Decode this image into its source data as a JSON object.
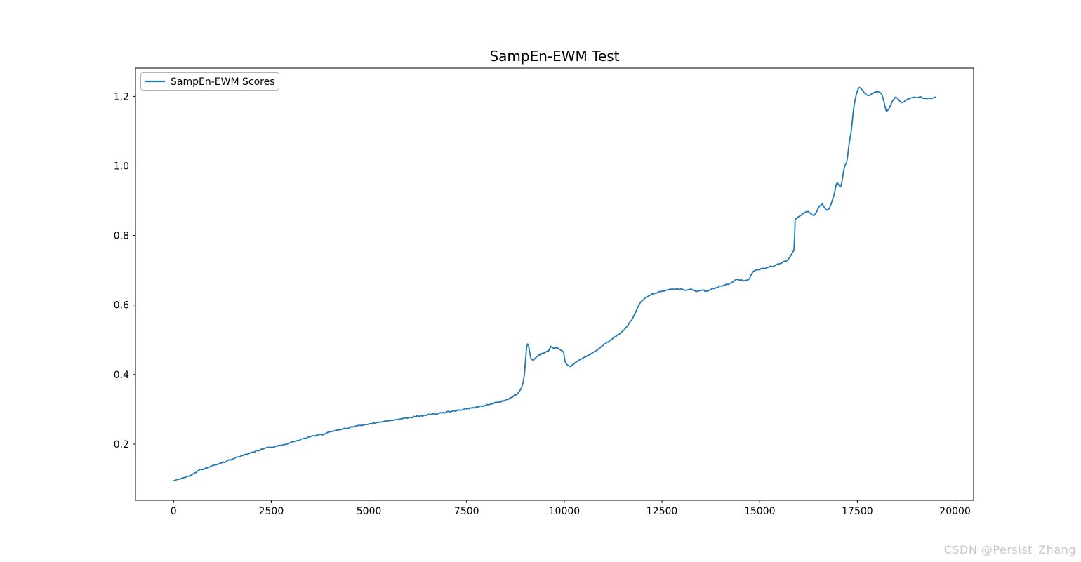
{
  "chart_data": {
    "type": "line",
    "title": "SampEn-EWM Test",
    "xlabel": "",
    "ylabel": "",
    "grid": false,
    "legend_position": "upper left",
    "line_color": "#1f77b4",
    "axis_color": "#000000",
    "xlim": [
      -975,
      20475
    ],
    "ylim": [
      0.0385,
      1.2815
    ],
    "x_ticks": [
      0,
      2500,
      5000,
      7500,
      10000,
      12500,
      15000,
      17500,
      20000
    ],
    "y_ticks": [
      0.2,
      0.4,
      0.6,
      0.8,
      1.0,
      1.2
    ],
    "series": [
      {
        "name": "SampEn-EWM Scores",
        "points": [
          [
            0,
            0.095
          ],
          [
            150,
            0.099
          ],
          [
            300,
            0.104
          ],
          [
            450,
            0.111
          ],
          [
            646,
            0.124
          ],
          [
            800,
            0.13
          ],
          [
            1000,
            0.138
          ],
          [
            1200,
            0.146
          ],
          [
            1364,
            0.151
          ],
          [
            1550,
            0.159
          ],
          [
            1750,
            0.167
          ],
          [
            1950,
            0.174
          ],
          [
            2143,
            0.181
          ],
          [
            2300,
            0.186
          ],
          [
            2441,
            0.191
          ],
          [
            2600,
            0.193
          ],
          [
            2750,
            0.197
          ],
          [
            2890,
            0.2
          ],
          [
            3100,
            0.208
          ],
          [
            3300,
            0.215
          ],
          [
            3500,
            0.221
          ],
          [
            3698,
            0.225
          ],
          [
            3900,
            0.231
          ],
          [
            4100,
            0.238
          ],
          [
            4250,
            0.242
          ],
          [
            4416,
            0.245
          ],
          [
            4600,
            0.25
          ],
          [
            4800,
            0.254
          ],
          [
            5000,
            0.258
          ],
          [
            5196,
            0.262
          ],
          [
            5400,
            0.266
          ],
          [
            5600,
            0.269
          ],
          [
            5800,
            0.272
          ],
          [
            5960,
            0.275
          ],
          [
            6200,
            0.279
          ],
          [
            6400,
            0.282
          ],
          [
            6600,
            0.285
          ],
          [
            6870,
            0.289
          ],
          [
            7100,
            0.294
          ],
          [
            7300,
            0.298
          ],
          [
            7500,
            0.301
          ],
          [
            7768,
            0.306
          ],
          [
            7950,
            0.311
          ],
          [
            8150,
            0.316
          ],
          [
            8350,
            0.322
          ],
          [
            8486,
            0.326
          ],
          [
            8600,
            0.332
          ],
          [
            8700,
            0.338
          ],
          [
            8800,
            0.345
          ],
          [
            8845,
            0.35
          ],
          [
            8905,
            0.362
          ],
          [
            8948,
            0.378
          ],
          [
            8980,
            0.4
          ],
          [
            9010,
            0.445
          ],
          [
            9035,
            0.478
          ],
          [
            9060,
            0.488
          ],
          [
            9084,
            0.486
          ],
          [
            9110,
            0.465
          ],
          [
            9147,
            0.447
          ],
          [
            9207,
            0.441
          ],
          [
            9267,
            0.448
          ],
          [
            9327,
            0.454
          ],
          [
            9447,
            0.461
          ],
          [
            9520,
            0.464
          ],
          [
            9597,
            0.468
          ],
          [
            9656,
            0.481
          ],
          [
            9700,
            0.477
          ],
          [
            9750,
            0.475
          ],
          [
            9800,
            0.478
          ],
          [
            9850,
            0.475
          ],
          [
            9900,
            0.471
          ],
          [
            9950,
            0.468
          ],
          [
            9985,
            0.463
          ],
          [
            10015,
            0.438
          ],
          [
            10075,
            0.428
          ],
          [
            10120,
            0.425
          ],
          [
            10164,
            0.423
          ],
          [
            10240,
            0.43
          ],
          [
            10314,
            0.437
          ],
          [
            10420,
            0.444
          ],
          [
            10553,
            0.451
          ],
          [
            10700,
            0.461
          ],
          [
            10853,
            0.471
          ],
          [
            11000,
            0.484
          ],
          [
            11151,
            0.497
          ],
          [
            11300,
            0.509
          ],
          [
            11451,
            0.521
          ],
          [
            11600,
            0.538
          ],
          [
            11750,
            0.562
          ],
          [
            11830,
            0.58
          ],
          [
            11896,
            0.597
          ],
          [
            11990,
            0.612
          ],
          [
            12076,
            0.621
          ],
          [
            12200,
            0.628
          ],
          [
            12315,
            0.634
          ],
          [
            12450,
            0.639
          ],
          [
            12614,
            0.643
          ],
          [
            12750,
            0.645
          ],
          [
            12914,
            0.646
          ],
          [
            13050,
            0.644
          ],
          [
            13212,
            0.645
          ],
          [
            13300,
            0.642
          ],
          [
            13392,
            0.639
          ],
          [
            13512,
            0.643
          ],
          [
            13632,
            0.64
          ],
          [
            13720,
            0.643
          ],
          [
            13811,
            0.647
          ],
          [
            13950,
            0.652
          ],
          [
            14111,
            0.657
          ],
          [
            14230,
            0.662
          ],
          [
            14330,
            0.668
          ],
          [
            14410,
            0.674
          ],
          [
            14500,
            0.672
          ],
          [
            14590,
            0.669
          ],
          [
            14679,
            0.672
          ],
          [
            14740,
            0.676
          ],
          [
            14800,
            0.69
          ],
          [
            14860,
            0.698
          ],
          [
            14950,
            0.702
          ],
          [
            15100,
            0.706
          ],
          [
            15200,
            0.708
          ],
          [
            15309,
            0.711
          ],
          [
            15400,
            0.714
          ],
          [
            15488,
            0.718
          ],
          [
            15580,
            0.722
          ],
          [
            15668,
            0.726
          ],
          [
            15728,
            0.731
          ],
          [
            15787,
            0.74
          ],
          [
            15847,
            0.752
          ],
          [
            15877,
            0.758
          ],
          [
            15895,
            0.8
          ],
          [
            15907,
            0.845
          ],
          [
            15940,
            0.849
          ],
          [
            15967,
            0.852
          ],
          [
            16010,
            0.855
          ],
          [
            16057,
            0.858
          ],
          [
            16100,
            0.862
          ],
          [
            16147,
            0.866
          ],
          [
            16200,
            0.868
          ],
          [
            16237,
            0.869
          ],
          [
            16296,
            0.864
          ],
          [
            16340,
            0.86
          ],
          [
            16386,
            0.857
          ],
          [
            16430,
            0.863
          ],
          [
            16476,
            0.872
          ],
          [
            16536,
            0.885
          ],
          [
            16596,
            0.892
          ],
          [
            16640,
            0.884
          ],
          [
            16686,
            0.876
          ],
          [
            16745,
            0.872
          ],
          [
            16790,
            0.88
          ],
          [
            16835,
            0.893
          ],
          [
            16895,
            0.912
          ],
          [
            16925,
            0.928
          ],
          [
            16955,
            0.945
          ],
          [
            16985,
            0.952
          ],
          [
            17015,
            0.947
          ],
          [
            17045,
            0.942
          ],
          [
            17074,
            0.94
          ],
          [
            17104,
            0.955
          ],
          [
            17134,
            0.975
          ],
          [
            17164,
            0.995
          ],
          [
            17200,
            1.005
          ],
          [
            17224,
            1.008
          ],
          [
            17254,
            1.03
          ],
          [
            17284,
            1.06
          ],
          [
            17313,
            1.08
          ],
          [
            17343,
            1.1
          ],
          [
            17373,
            1.13
          ],
          [
            17403,
            1.163
          ],
          [
            17433,
            1.185
          ],
          [
            17463,
            1.2
          ],
          [
            17493,
            1.213
          ],
          [
            17523,
            1.222
          ],
          [
            17553,
            1.226
          ],
          [
            17583,
            1.224
          ],
          [
            17613,
            1.22
          ],
          [
            17643,
            1.217
          ],
          [
            17672,
            1.211
          ],
          [
            17702,
            1.208
          ],
          [
            17745,
            1.204
          ],
          [
            17792,
            1.202
          ],
          [
            17852,
            1.206
          ],
          [
            17900,
            1.209
          ],
          [
            17942,
            1.212
          ],
          [
            17990,
            1.213
          ],
          [
            18032,
            1.213
          ],
          [
            18080,
            1.211
          ],
          [
            18121,
            1.207
          ],
          [
            18150,
            1.198
          ],
          [
            18181,
            1.185
          ],
          [
            18210,
            1.17
          ],
          [
            18241,
            1.158
          ],
          [
            18270,
            1.159
          ],
          [
            18301,
            1.163
          ],
          [
            18350,
            1.174
          ],
          [
            18390,
            1.185
          ],
          [
            18440,
            1.193
          ],
          [
            18480,
            1.198
          ],
          [
            18510,
            1.196
          ],
          [
            18540,
            1.193
          ],
          [
            18580,
            1.187
          ],
          [
            18630,
            1.182
          ],
          [
            18689,
            1.184
          ],
          [
            18730,
            1.188
          ],
          [
            18779,
            1.192
          ],
          [
            18840,
            1.195
          ],
          [
            18899,
            1.196
          ],
          [
            18980,
            1.197
          ],
          [
            19079,
            1.198
          ],
          [
            19160,
            1.196
          ],
          [
            19258,
            1.194
          ],
          [
            19350,
            1.195
          ],
          [
            19438,
            1.196
          ],
          [
            19497,
            1.198
          ]
        ]
      }
    ]
  },
  "watermark": {
    "text": "CSDN @Persist_Zhang",
    "color": "#c8c8c8"
  }
}
